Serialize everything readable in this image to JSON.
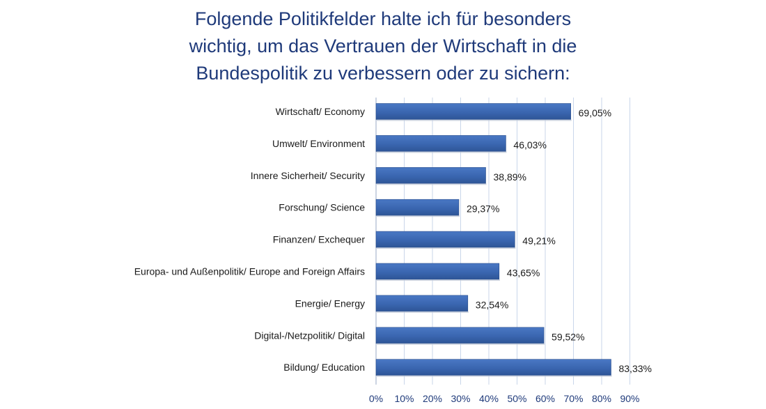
{
  "chart_data": {
    "type": "bar",
    "orientation": "horizontal",
    "title_lines": [
      "Folgende Politikfelder halte ich für besonders",
      "wichtig, um das Vertrauen der Wirtschaft in die",
      "Bundespolitik zu verbessern oder zu sichern:"
    ],
    "categories": [
      "Wirtschaft/ Economy",
      "Umwelt/ Environment",
      "Innere Sicherheit/ Security",
      "Forschung/ Science",
      "Finanzen/ Exchequer",
      "Europa- und Außenpolitik/ Europe and Foreign Affairs",
      "Energie/ Energy",
      "Digital-/Netzpolitik/ Digital",
      "Bildung/ Education"
    ],
    "values": [
      69.05,
      46.03,
      38.89,
      29.37,
      49.21,
      43.65,
      32.54,
      59.52,
      83.33
    ],
    "value_labels": [
      "69,05%",
      "46,03%",
      "38,89%",
      "29,37%",
      "49,21%",
      "43,65%",
      "32,54%",
      "59,52%",
      "83,33%"
    ],
    "xlim": [
      0,
      90
    ],
    "xticks": [
      0,
      10,
      20,
      30,
      40,
      50,
      60,
      70,
      80,
      90
    ],
    "xtick_labels": [
      "0%",
      "10%",
      "20%",
      "30%",
      "40%",
      "50%",
      "60%",
      "70%",
      "80%",
      "90%"
    ],
    "grid": true,
    "bar_color": "#3a66b0",
    "grid_color": "#c9d6ea",
    "title_color": "#1f3a7a"
  }
}
